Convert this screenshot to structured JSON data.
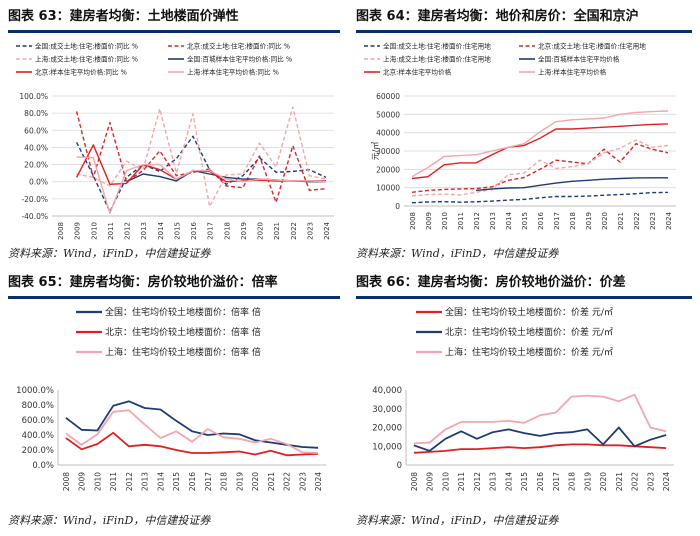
{
  "source_text": "资料来源：Wind，iFinD，中信建投证券",
  "chart_data": [
    {
      "type": "line",
      "title": "图表 63：建房者均衡：土地楼面价弹性",
      "x": [
        "2008",
        "2009",
        "2010",
        "2011",
        "2012",
        "2013",
        "2014",
        "2015",
        "2016",
        "2017",
        "2018",
        "2019",
        "2020",
        "2021",
        "2022",
        "2023",
        "2024"
      ],
      "ylim": [
        -0.4,
        1.0
      ],
      "yticks": [
        "-40.0%",
        "-20.0%",
        "0.0%",
        "20.0%",
        "40.0%",
        "60.0%",
        "80.0%",
        "100.0%"
      ],
      "legend": [
        "全国:成交土地:住宅:楼面价:同比 %",
        "北京:成交土地:住宅:楼面价:同比 %",
        "上海:成交土地:住宅:楼面价:同比 %",
        "全国:百城样本住宅平均价格:同比 %",
        "北京:样本住宅平均价格:同比 %",
        "上海:样本住宅平均价格:同比 %"
      ],
      "series": [
        {
          "name": "全国:成交土地:住宅:楼面价:同比",
          "color": "#1f3b73",
          "style": "dashed",
          "values": [
            null,
            0.46,
            0.07,
            -0.35,
            0.05,
            0.2,
            0.12,
            0.27,
            0.53,
            0.14,
            -0.03,
            0.07,
            0.28,
            0.11,
            0.12,
            0.14,
            0.05
          ]
        },
        {
          "name": "北京:成交土地:住宅:楼面价:同比",
          "color": "#d62728",
          "style": "dashed",
          "values": [
            null,
            0.82,
            0.05,
            0.69,
            0.0,
            0.13,
            0.36,
            0.07,
            0.11,
            0.15,
            -0.05,
            -0.07,
            0.3,
            -0.24,
            0.42,
            -0.1,
            -0.08
          ]
        },
        {
          "name": "上海:成交土地:住宅:楼面价:同比",
          "color": "#f2a7a7",
          "style": "dashed",
          "values": [
            null,
            0.09,
            0.05,
            -0.05,
            0.24,
            0.14,
            0.85,
            0.1,
            0.79,
            -0.29,
            0.08,
            0.09,
            0.45,
            0.17,
            0.87,
            0.07,
            0.03
          ]
        },
        {
          "name": "全国:百城样本住宅平均价格:同比",
          "color": "#1f3b73",
          "style": "solid",
          "values": [
            null,
            null,
            null,
            null,
            0.0,
            0.09,
            0.06,
            0.01,
            0.13,
            0.09,
            0.05,
            0.03,
            0.03,
            0.02,
            0.01,
            0.0,
            0.0
          ]
        },
        {
          "name": "北京:样本住宅平均价格:同比",
          "color": "#e02020",
          "style": "solid",
          "values": [
            null,
            0.05,
            0.43,
            -0.03,
            -0.02,
            0.2,
            0.14,
            0.03,
            0.13,
            0.12,
            0.0,
            0.01,
            0.02,
            0.01,
            0.01,
            0.01,
            0.01
          ]
        },
        {
          "name": "上海:样本住宅平均价格:同比",
          "color": "#f4a5ad",
          "style": "solid",
          "values": [
            null,
            0.29,
            0.28,
            -0.37,
            0.13,
            0.2,
            0.2,
            0.03,
            0.13,
            0.13,
            0.03,
            0.0,
            0.03,
            0.02,
            0.01,
            0.01,
            0.0
          ]
        }
      ]
    },
    {
      "type": "line",
      "title": "图表 64：建房者均衡：地价和房价：全国和京沪",
      "ylabel": "元/㎡",
      "x": [
        "2008",
        "2009",
        "2010",
        "2011",
        "2012",
        "2013",
        "2014",
        "2015",
        "2016",
        "2017",
        "2018",
        "2019",
        "2020",
        "2021",
        "2022",
        "2023",
        "2024"
      ],
      "ylim": [
        0,
        60000
      ],
      "yticks": [
        "0",
        "10000",
        "20000",
        "30000",
        "40000",
        "50000",
        "60000"
      ],
      "legend": [
        "全国:成交土地:住宅:楼面价:住宅用地",
        "北京:成交土地:住宅:楼面价:住宅用地",
        "上海:成交土地:住宅:楼面价:住宅用地",
        "全国:百城样本住宅平均价格",
        "北京:样本住宅平均价格",
        "上海:样本住宅平均价格"
      ],
      "series": [
        {
          "name": "全国:成交土地:住宅:楼面价:住宅用地",
          "color": "#1f3b73",
          "style": "dashed",
          "values": [
            1800,
            2200,
            2400,
            2100,
            2300,
            2700,
            3200,
            3600,
            4500,
            5200,
            5200,
            5400,
            5900,
            6200,
            6700,
            7300,
            7400
          ]
        },
        {
          "name": "北京:成交土地:住宅:楼面价:住宅用地",
          "color": "#d62728",
          "style": "dashed",
          "values": [
            7500,
            8500,
            9000,
            9300,
            9500,
            10500,
            14000,
            15500,
            20000,
            25000,
            24000,
            23000,
            31000,
            24000,
            34000,
            31000,
            29000
          ]
        },
        {
          "name": "上海:成交土地:住宅:楼面价:住宅用地",
          "color": "#f2a7a7",
          "style": "dashed",
          "values": [
            5500,
            6200,
            6500,
            6000,
            7500,
            9000,
            17000,
            18000,
            25000,
            20500,
            21500,
            23000,
            29000,
            31500,
            36000,
            32000,
            33000
          ]
        },
        {
          "name": "全国:百城样本住宅平均价格",
          "color": "#1f3b73",
          "style": "solid",
          "values": [
            null,
            null,
            null,
            null,
            8500,
            9300,
            9800,
            10000,
            11300,
            12500,
            13500,
            14000,
            14600,
            15000,
            15300,
            15400,
            15400
          ]
        },
        {
          "name": "北京:样本住宅平均价格",
          "color": "#e02020",
          "style": "solid",
          "values": [
            15000,
            16000,
            22500,
            23500,
            23500,
            28000,
            32000,
            33000,
            37000,
            42000,
            42000,
            42500,
            43000,
            43500,
            44000,
            44500,
            44800
          ]
        },
        {
          "name": "上海:样本住宅平均价格",
          "color": "#f4a5ad",
          "style": "solid",
          "values": [
            16000,
            21000,
            27000,
            27500,
            28000,
            30000,
            32000,
            34000,
            40500,
            46000,
            47000,
            47500,
            48000,
            50000,
            51000,
            51500,
            51800
          ]
        }
      ]
    },
    {
      "type": "line",
      "title": "图表 65：建房者均衡：房价较地价溢价：倍率",
      "x": [
        "2008",
        "2009",
        "2010",
        "2011",
        "2012",
        "2013",
        "2014",
        "2015",
        "2016",
        "2017",
        "2018",
        "2019",
        "2020",
        "2021",
        "2022",
        "2023",
        "2024"
      ],
      "ylim": [
        0,
        10
      ],
      "yticks": [
        "0.0%",
        "200.0%",
        "400.0%",
        "600.0%",
        "800.0%",
        "1000.0%"
      ],
      "legend": [
        "全国：住宅均价较土地楼面价：倍率 倍",
        "北京：住宅均价较土地楼面价：倍率 倍",
        "上海：住宅均价较土地楼面价：倍率 倍"
      ],
      "series": [
        {
          "name": "全国：住宅均价较土地楼面价：倍率 倍",
          "color": "#1f3b73",
          "style": "solid",
          "values": [
            6.3,
            4.7,
            4.6,
            7.9,
            8.5,
            7.6,
            7.4,
            5.9,
            4.5,
            4.0,
            4.2,
            4.1,
            3.3,
            3.0,
            2.7,
            2.4,
            2.3
          ]
        },
        {
          "name": "北京：住宅均价较土地楼面价：倍率 倍",
          "color": "#e02020",
          "style": "solid",
          "values": [
            3.6,
            2.1,
            2.8,
            4.3,
            2.5,
            2.7,
            2.5,
            2.0,
            1.6,
            1.6,
            1.7,
            1.8,
            1.4,
            1.9,
            1.3,
            1.4,
            1.5
          ]
        },
        {
          "name": "上海：住宅均价较土地楼面价：倍率 倍",
          "color": "#f4a5ad",
          "style": "solid",
          "values": [
            4.2,
            2.7,
            4.1,
            7.1,
            7.3,
            5.4,
            3.6,
            4.5,
            3.1,
            4.8,
            3.7,
            3.5,
            3.0,
            3.5,
            2.8,
            1.7,
            1.6
          ]
        }
      ]
    },
    {
      "type": "line",
      "title": "图表 66：建房者均衡：房价较地价溢价：价差",
      "x": [
        "2008",
        "2009",
        "2010",
        "2011",
        "2012",
        "2013",
        "2014",
        "2015",
        "2016",
        "2017",
        "2018",
        "2019",
        "2020",
        "2021",
        "2022",
        "2023",
        "2024"
      ],
      "ylim": [
        0,
        40000
      ],
      "yticks": [
        "0",
        "10,000",
        "20,000",
        "30,000",
        "40,000"
      ],
      "legend": [
        "全国：住宅均价较土地楼面价：价差 元/㎡",
        "北京：住宅均价较土地楼面价：价差 元/㎡",
        "上海：住宅均价较土地楼面价：价差 元/㎡"
      ],
      "series": [
        {
          "name": "全国：住宅均价较土地楼面价：价差 元/㎡",
          "color": "#e02020",
          "style": "solid",
          "values": [
            6500,
            7000,
            7500,
            8500,
            8500,
            9000,
            9500,
            9000,
            9500,
            10500,
            11000,
            11000,
            10500,
            10500,
            10000,
            9500,
            9000
          ]
        },
        {
          "name": "北京：住宅均价较土地楼面价：价差 元/㎡",
          "color": "#1f3b73",
          "style": "solid",
          "values": [
            10500,
            7500,
            14000,
            18000,
            14000,
            17500,
            19000,
            17000,
            15500,
            17000,
            17500,
            19000,
            11000,
            20000,
            10000,
            13500,
            16000
          ]
        },
        {
          "name": "上海：住宅均价较土地楼面价：价差 元/㎡",
          "color": "#f4a5ad",
          "style": "solid",
          "values": [
            11500,
            12000,
            19000,
            23000,
            23000,
            23000,
            23500,
            22500,
            26500,
            28000,
            36500,
            37000,
            36500,
            34000,
            37500,
            20000,
            18000
          ]
        }
      ]
    }
  ]
}
